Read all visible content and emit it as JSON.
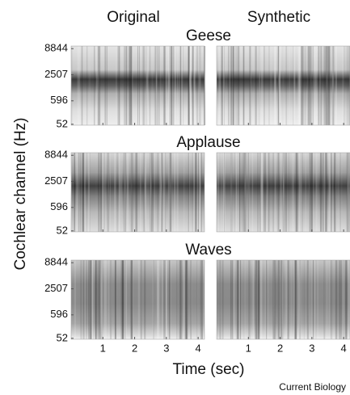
{
  "chart_data": {
    "type": "cochleagram",
    "columns": [
      "Original",
      "Synthetic"
    ],
    "rows": [
      "Geese",
      "Applause",
      "Waves"
    ],
    "y_label": "Cochlear channel (Hz)",
    "x_label": "Time (sec)",
    "yscale": "erb",
    "ylim": [
      40,
      10000
    ],
    "yticks": [
      52,
      596,
      2507,
      8844
    ],
    "xlim": [
      0,
      4.2
    ],
    "xticks": [
      1,
      2,
      3,
      4
    ]
  },
  "credit": "Current Biology"
}
